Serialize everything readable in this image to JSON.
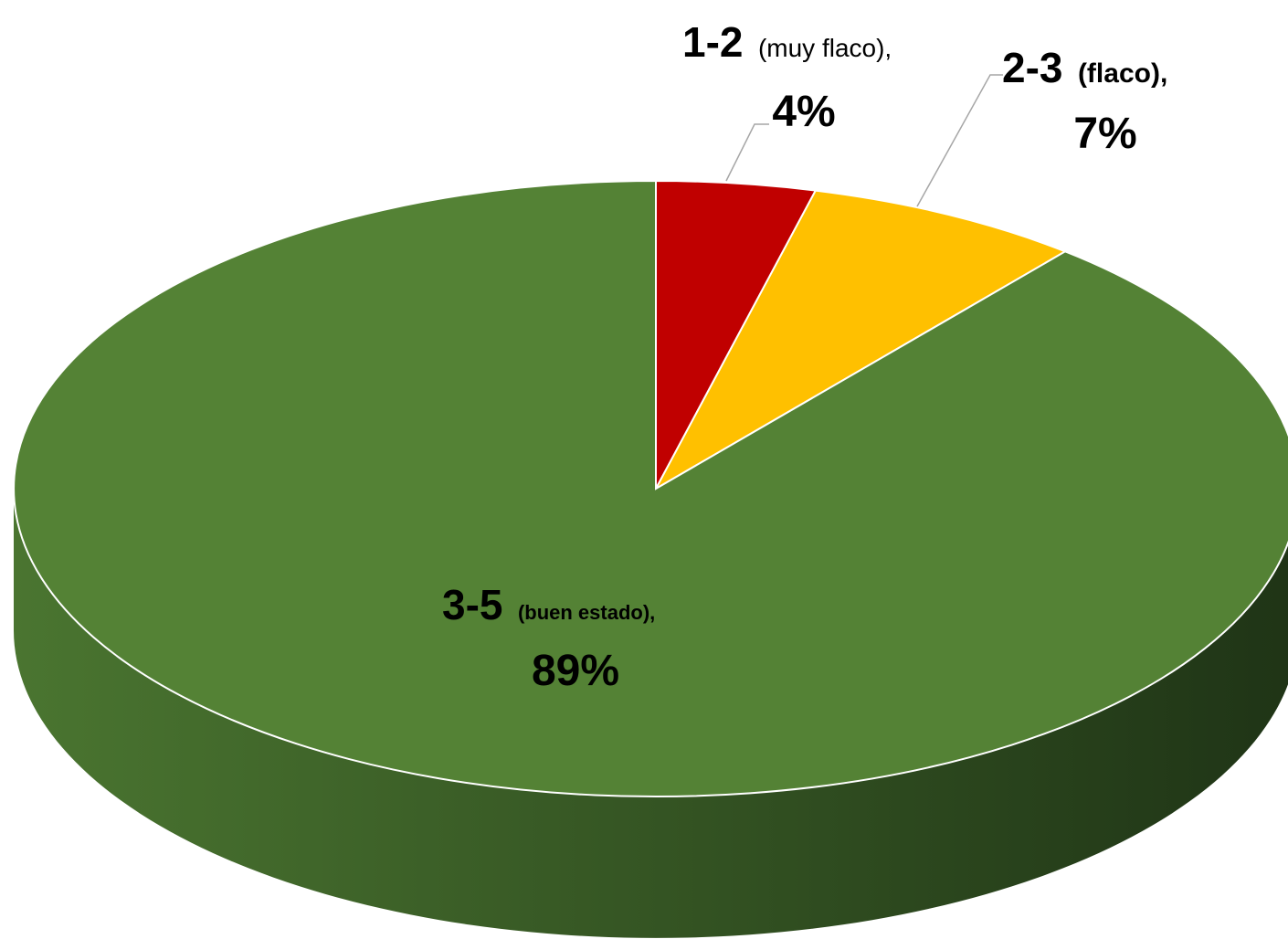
{
  "chart_data": {
    "type": "pie",
    "title": "",
    "style": "3d",
    "slices": [
      {
        "category": "1-2",
        "descriptor": "(muy flaco),",
        "value": 4,
        "value_label": "4%",
        "color": "#C00000"
      },
      {
        "category": "2-3",
        "descriptor": "(flaco),",
        "value": 7,
        "value_label": "7%",
        "color": "#FFC000"
      },
      {
        "category": "3-5",
        "descriptor": "(buen estado),",
        "value": 89,
        "value_label": "89%",
        "color": "#548235"
      }
    ],
    "side_color_light": "#4a7530",
    "side_color_dark": "#1f3416",
    "legend": "none"
  }
}
